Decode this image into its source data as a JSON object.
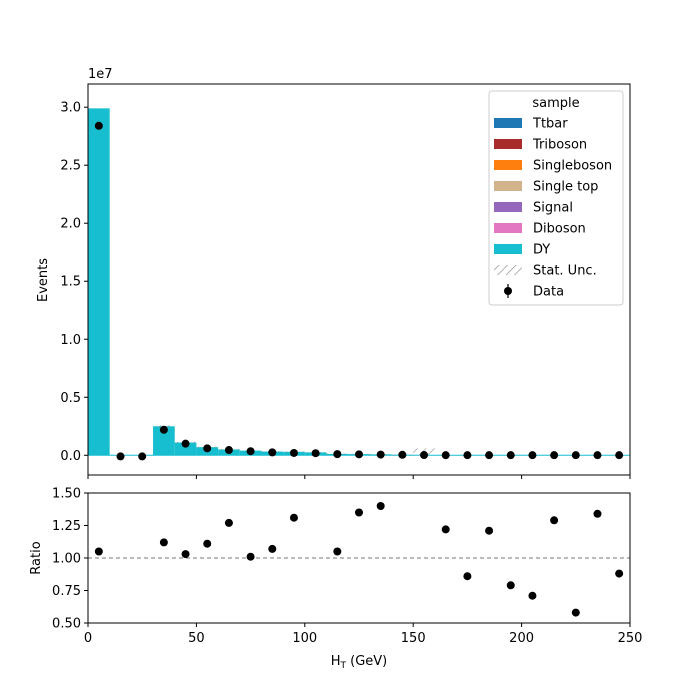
{
  "chart_data": [
    {
      "type": "bar",
      "subtype": "stacked-histogram",
      "xlabel": "H",
      "xlabel_sub": "T",
      "xlabel_unit": " (GeV)",
      "ylabel": "Events",
      "offset_text": "1e7",
      "ylim": [
        -0.17,
        3.2
      ],
      "xlim": [
        0,
        250
      ],
      "yticks": [
        0.0,
        0.5,
        1.0,
        1.5,
        2.0,
        2.5,
        3.0
      ],
      "ytick_labels": [
        "0.0",
        "0.5",
        "1.0",
        "1.5",
        "2.0",
        "2.5",
        "3.0"
      ],
      "bin_edges": [
        0,
        10,
        20,
        30,
        40,
        50,
        60,
        70,
        80,
        90,
        100,
        110,
        120,
        130,
        140,
        150,
        160,
        170,
        180,
        190,
        200,
        210,
        220,
        230,
        240,
        250
      ],
      "mc_total": [
        2.99,
        0.0,
        0.0,
        0.25,
        0.11,
        0.07,
        0.05,
        0.04,
        0.032,
        0.03,
        0.025,
        0.012,
        0.01,
        0.008,
        0.004,
        0.0,
        0.0,
        0.0,
        0.0,
        0.0,
        0.0,
        0.0,
        0.0,
        0.0,
        0.0
      ],
      "stat_unc": [
        0.0,
        0.0,
        0.0,
        0.01,
        0.006,
        0.004,
        0.004,
        0.003,
        0.003,
        0.003,
        0.003,
        0.003,
        0.002,
        0.002,
        0.002,
        0.06,
        0.0,
        0.0,
        0.0,
        0.0,
        0.0,
        0.0,
        0.0,
        0.0,
        0.0
      ],
      "data_x": [
        5,
        15,
        25,
        35,
        45,
        55,
        65,
        75,
        85,
        95,
        105,
        115,
        125,
        135,
        145,
        155,
        165,
        175,
        185,
        195,
        205,
        215,
        225,
        235,
        245
      ],
      "data_y": [
        2.84,
        -0.01,
        -0.01,
        0.22,
        0.1,
        0.06,
        0.045,
        0.035,
        0.025,
        0.02,
        0.018,
        0.01,
        0.008,
        0.006,
        0.004,
        0.002,
        0.001,
        0.001,
        0.001,
        0.001,
        0.001,
        0.001,
        0.001,
        0.001,
        0.001
      ],
      "legend": {
        "title": "sample",
        "placement": "top-right",
        "entries": [
          {
            "label": "Ttbar",
            "color": "#1f77b4",
            "kind": "patch"
          },
          {
            "label": "Triboson",
            "color": "#a82a2a",
            "kind": "patch"
          },
          {
            "label": "Singleboson",
            "color": "#ff7f0e",
            "kind": "patch"
          },
          {
            "label": "Single top",
            "color": "#d2b48c",
            "kind": "patch"
          },
          {
            "label": "Signal",
            "color": "#9467bd",
            "kind": "patch"
          },
          {
            "label": "Diboson",
            "color": "#e377c2",
            "kind": "patch"
          },
          {
            "label": "DY",
            "color": "#17becf",
            "kind": "patch"
          },
          {
            "label": "Stat. Unc.",
            "color": "#888888",
            "kind": "hatch"
          },
          {
            "label": "Data",
            "color": "#000000",
            "kind": "marker"
          }
        ]
      }
    },
    {
      "type": "scatter",
      "ylabel": "Ratio",
      "xlabel": "H",
      "xlabel_sub": "T",
      "xlabel_unit": " (GeV)",
      "xlim": [
        0,
        250
      ],
      "ylim": [
        0.5,
        1.5
      ],
      "xticks": [
        0,
        50,
        100,
        150,
        200,
        250
      ],
      "xtick_labels": [
        "0",
        "50",
        "100",
        "150",
        "200",
        "250"
      ],
      "yticks": [
        0.5,
        0.75,
        1.0,
        1.25,
        1.5
      ],
      "ytick_labels": [
        "0.50",
        "0.75",
        "1.00",
        "1.25",
        "1.50"
      ],
      "reference_line": 1.0,
      "x": [
        5,
        35,
        45,
        55,
        65,
        75,
        85,
        95,
        115,
        125,
        135,
        165,
        175,
        185,
        195,
        205,
        215,
        225,
        235,
        245
      ],
      "y": [
        1.05,
        1.12,
        1.03,
        1.11,
        1.27,
        1.01,
        1.07,
        1.31,
        1.05,
        1.35,
        1.4,
        1.22,
        0.86,
        1.21,
        0.79,
        0.71,
        1.29,
        0.58,
        1.34,
        0.88
      ]
    }
  ],
  "colors": {
    "dy": "#17becf",
    "data": "#000000",
    "unc": "#888888"
  }
}
